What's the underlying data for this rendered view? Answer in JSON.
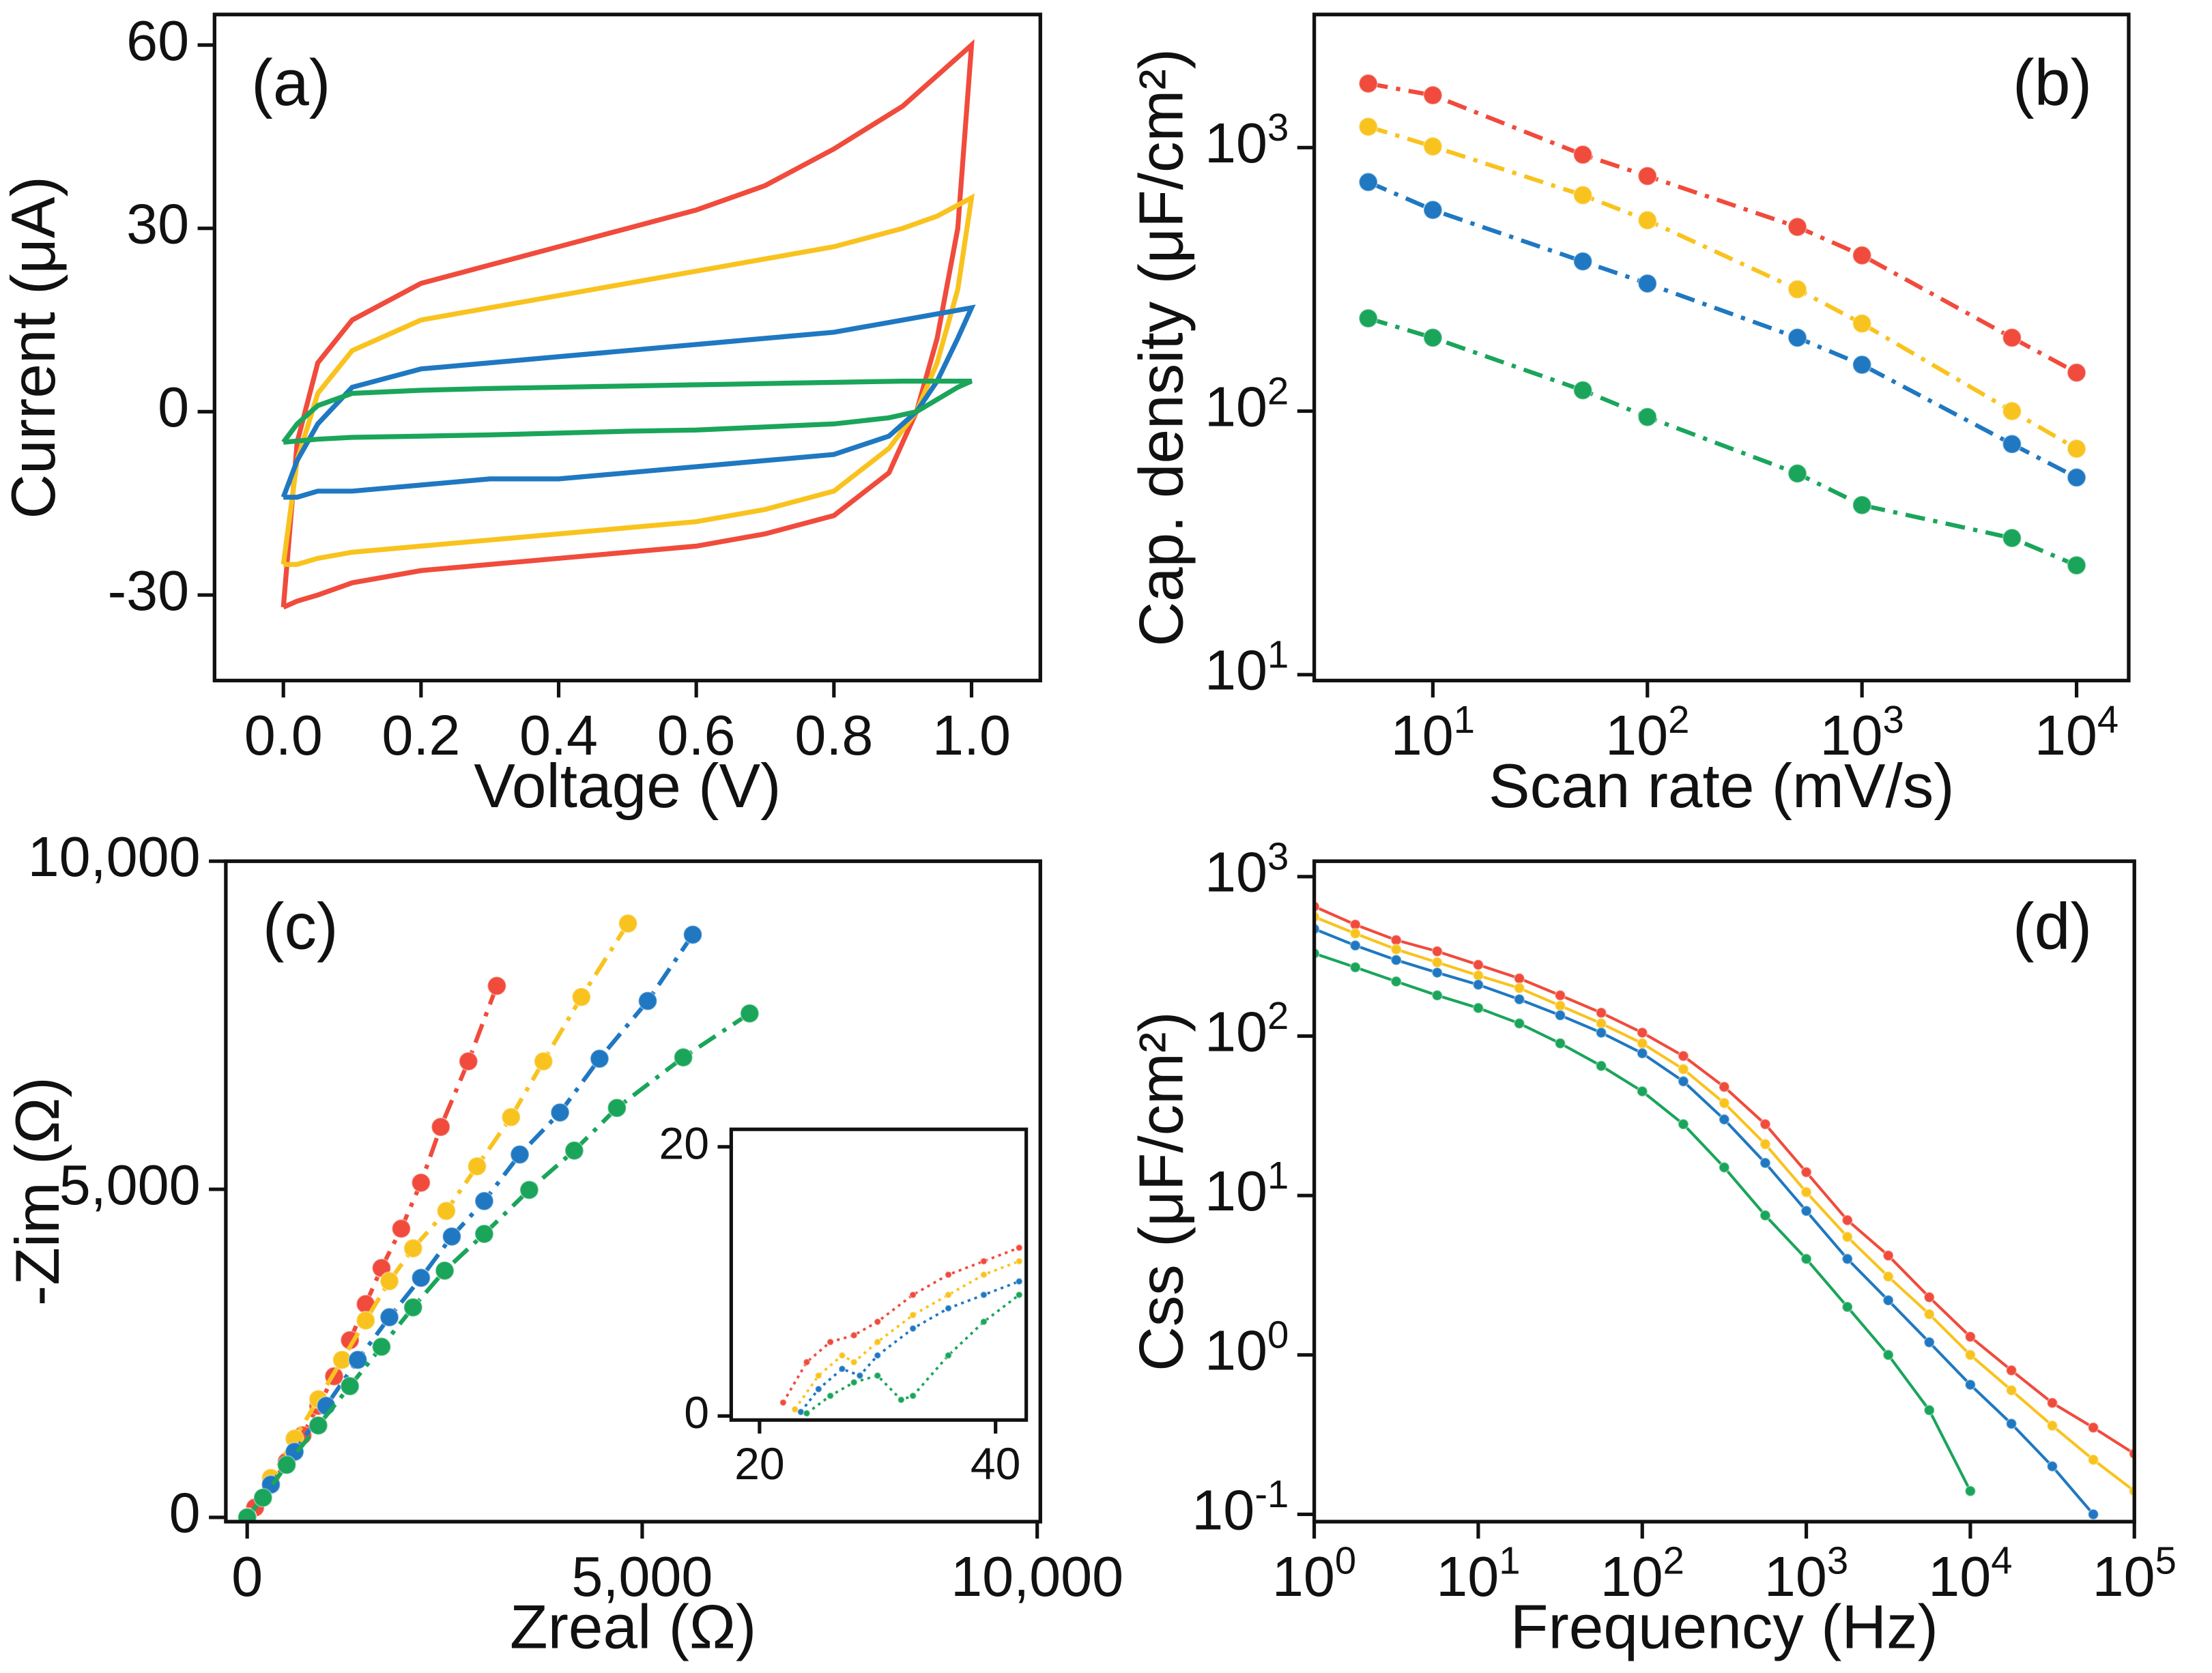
{
  "chart_data": [
    {
      "type": "line",
      "panel_label": "(a)",
      "x_label": "Voltage (V)",
      "y_label": "Current (μA)",
      "x": [
        0,
        0.02,
        0.05,
        0.1,
        0.2,
        0.3,
        0.4,
        0.5,
        0.6,
        0.7,
        0.8,
        0.9,
        0.95,
        1.0,
        1.0,
        0.98,
        0.95,
        0.92,
        0.88,
        0.8,
        0.7,
        0.6,
        0.5,
        0.4,
        0.3,
        0.2,
        0.1,
        0.05,
        0.02,
        0
      ],
      "xlim": [
        -0.1,
        1.1
      ],
      "ylim": [
        -44,
        65
      ],
      "xticks": [
        {
          "value": 0,
          "label": "0.0"
        },
        {
          "value": 0.2,
          "label": "0.2"
        },
        {
          "value": 0.4,
          "label": "0.4"
        },
        {
          "value": 0.6,
          "label": "0.6"
        },
        {
          "value": 0.8,
          "label": "0.8"
        },
        {
          "value": 1,
          "label": "1.0"
        }
      ],
      "yticks": [
        -30,
        0,
        30,
        60
      ],
      "series": [
        {
          "color": "#f04b3c",
          "values": [
            -32,
            -5,
            8,
            15,
            21,
            24,
            27,
            30,
            33,
            37,
            43,
            50,
            55,
            60,
            60,
            30,
            12,
            0,
            -10,
            -17,
            -20,
            -22,
            -23,
            -24,
            -25,
            -26,
            -28,
            -30,
            -31,
            -32
          ]
        },
        {
          "color": "#f9c31f",
          "values": [
            -25,
            -8,
            3,
            10,
            15,
            17,
            19,
            21,
            23,
            25,
            27,
            30,
            32,
            35,
            35,
            20,
            8,
            0,
            -6,
            -13,
            -16,
            -18,
            -19,
            -20,
            -21,
            -22,
            -23,
            -24,
            -25,
            -25
          ]
        },
        {
          "color": "#1f78c1",
          "values": [
            -14,
            -8,
            -2,
            4,
            7,
            8,
            9,
            10,
            11,
            12,
            13,
            15,
            16,
            17,
            17,
            12,
            5,
            0,
            -4,
            -7,
            -8,
            -9,
            -10,
            -11,
            -11,
            -12,
            -13,
            -13,
            -14,
            -14
          ]
        },
        {
          "color": "#1aa55a",
          "values": [
            -5,
            -2,
            1,
            3,
            3.5,
            3.8,
            4,
            4.2,
            4.4,
            4.6,
            4.8,
            5,
            5,
            5,
            5,
            4,
            2,
            0,
            -1,
            -2,
            -2.5,
            -3,
            -3.2,
            -3.5,
            -3.8,
            -4,
            -4.2,
            -4.5,
            -4.8,
            -5
          ]
        }
      ]
    },
    {
      "type": "scatter",
      "panel_label": "(b)",
      "x_label": "Scan rate (mV/s)",
      "y_label": "Cap. density (μF/cm²)",
      "xscale": "log",
      "yscale": "log",
      "line_style": "dash-dot",
      "x": [
        5,
        10,
        50,
        100,
        500,
        1000,
        5000,
        10000
      ],
      "xlim": [
        2.8,
        17500
      ],
      "ylim": [
        9.5,
        3200
      ],
      "xticks": [
        {
          "value": 10,
          "label": "10^1"
        },
        {
          "value": 100,
          "label": "10^2"
        },
        {
          "value": 1000,
          "label": "10^3"
        },
        {
          "value": 10000,
          "label": "10^4"
        }
      ],
      "yticks": [
        {
          "value": 10,
          "label": "10^1"
        },
        {
          "value": 100,
          "label": "10^2"
        },
        {
          "value": 1000,
          "label": "10^3"
        }
      ],
      "series": [
        {
          "color": "#f04b3c",
          "values": [
            1750,
            1580,
            940,
            780,
            500,
            390,
            190,
            140
          ]
        },
        {
          "color": "#f9c31f",
          "values": [
            1200,
            1010,
            660,
            530,
            290,
            215,
            100,
            72
          ]
        },
        {
          "color": "#1f78c1",
          "values": [
            740,
            580,
            370,
            305,
            190,
            150,
            75,
            56
          ]
        },
        {
          "color": "#1aa55a",
          "values": [
            225,
            190,
            120,
            95,
            58,
            44,
            33,
            26
          ]
        }
      ]
    },
    {
      "type": "scatter",
      "panel_label": "(c)",
      "x_label": "Zreal (Ω)",
      "y_label": "-Zim (Ω)",
      "line_style": "dash-dot",
      "xlim": [
        -270,
        10040
      ],
      "ylim": [
        -65,
        10000
      ],
      "xticks": [
        0,
        {
          "value": 5000,
          "label": "5,000"
        },
        {
          "value": 10000,
          "label": "10,000"
        }
      ],
      "yticks": [
        0,
        {
          "value": 5000,
          "label": "5,000"
        },
        {
          "value": 10000,
          "label": "10,000"
        }
      ],
      "series": [
        {
          "color": "#f04b3c",
          "x": [
            3160,
            2800,
            2450,
            2200,
            1950,
            1700,
            1500,
            1300,
            1100,
            900,
            700,
            500,
            300,
            100,
            0
          ],
          "values": [
            8100,
            6950,
            5950,
            5100,
            4400,
            3800,
            3250,
            2700,
            2150,
            1700,
            1250,
            850,
            500,
            150,
            0
          ]
        },
        {
          "color": "#f9c31f",
          "x": [
            4820,
            4230,
            3750,
            3340,
            2910,
            2520,
            2100,
            1800,
            1500,
            1200,
            900,
            600,
            300,
            0
          ],
          "values": [
            9050,
            7930,
            6950,
            6100,
            5350,
            4670,
            4100,
            3600,
            3000,
            2400,
            1800,
            1200,
            600,
            0
          ]
        },
        {
          "color": "#1f78c1",
          "x": [
            5640,
            5070,
            4460,
            3960,
            3450,
            3000,
            2590,
            2200,
            1800,
            1400,
            1000,
            600,
            300,
            0
          ],
          "values": [
            8880,
            7870,
            6990,
            6170,
            5530,
            4820,
            4280,
            3650,
            3050,
            2400,
            1700,
            1000,
            500,
            0
          ]
        },
        {
          "color": "#1aa55a",
          "x": [
            6360,
            5520,
            4680,
            4140,
            3570,
            3000,
            2500,
            2100,
            1700,
            1300,
            900,
            500,
            200,
            0
          ],
          "values": [
            7680,
            7010,
            6240,
            5590,
            4990,
            4320,
            3760,
            3200,
            2600,
            2000,
            1400,
            800,
            300,
            0
          ]
        }
      ],
      "inset": {
        "xlim": [
          17.6,
          42.6
        ],
        "ylim": [
          -0.3,
          21.3
        ],
        "xticks": [
          20,
          40
        ],
        "yticks": [
          0,
          20
        ],
        "line_style": "dotted",
        "series": [
          {
            "color": "#f04b3c",
            "x": [
              22,
              24,
              26,
              28,
              30,
              33,
              36,
              39,
              42
            ],
            "values": [
              1,
              4,
              5.5,
              6,
              7,
              9,
              10.5,
              11.5,
              12.5
            ]
          },
          {
            "color": "#f9c31f",
            "x": [
              23,
              25,
              27,
              28,
              30,
              33,
              36,
              39,
              42
            ],
            "values": [
              0.5,
              3,
              4.5,
              4,
              5.5,
              7.5,
              9,
              10.5,
              11.5
            ]
          },
          {
            "color": "#1f78c1",
            "x": [
              23.5,
              25,
              27,
              28.5,
              30,
              33,
              36,
              39,
              42
            ],
            "values": [
              0.3,
              2,
              3.5,
              3,
              4.5,
              6.5,
              8,
              9,
              10
            ]
          },
          {
            "color": "#1aa55a",
            "x": [
              24,
              26,
              28,
              30,
              32,
              33,
              36,
              39,
              42
            ],
            "values": [
              0.2,
              1.5,
              2.5,
              3,
              1.2,
              1.5,
              4.5,
              7,
              9
            ]
          }
        ]
      }
    },
    {
      "type": "line",
      "panel_label": "(d)",
      "x_label": "Frequency (Hz)",
      "y_label": "Css (μF/cm²)",
      "xscale": "log",
      "yscale": "log",
      "markers": true,
      "x": [
        1,
        1.78,
        3.16,
        5.62,
        10,
        17.8,
        31.6,
        56.2,
        100,
        178,
        316,
        562,
        1000,
        1780,
        3160,
        5620,
        10000,
        17800,
        31600,
        56200,
        100000
      ],
      "xlim": [
        1,
        100000
      ],
      "ylim": [
        0.09,
        1250
      ],
      "xticks": [
        {
          "value": 1,
          "label": "10^0"
        },
        {
          "value": 10,
          "label": "10^1"
        },
        {
          "value": 100,
          "label": "10^2"
        },
        {
          "value": 1000,
          "label": "10^3"
        },
        {
          "value": 10000,
          "label": "10^4"
        },
        {
          "value": 100000,
          "label": "10^5"
        }
      ],
      "yticks": [
        {
          "value": 0.1,
          "label": "10^-1"
        },
        {
          "value": 1,
          "label": "10^0"
        },
        {
          "value": 10,
          "label": "10^1"
        },
        {
          "value": 100,
          "label": "10^2"
        },
        {
          "value": 1000,
          "label": "10^3"
        }
      ],
      "series": [
        {
          "color": "#f04b3c",
          "values": [
            650,
            500,
            400,
            340,
            280,
            230,
            180,
            140,
            105,
            75,
            48,
            28,
            14,
            7,
            4.2,
            2.3,
            1.3,
            0.8,
            0.5,
            0.35,
            0.24
          ]
        },
        {
          "color": "#f9c31f",
          "values": [
            560,
            440,
            350,
            290,
            240,
            200,
            155,
            120,
            90,
            62,
            38,
            21,
            10.5,
            5.5,
            3.1,
            1.8,
            1.0,
            0.6,
            0.36,
            0.22,
            0.14
          ]
        },
        {
          "color": "#1f78c1",
          "values": [
            470,
            370,
            300,
            250,
            210,
            170,
            135,
            105,
            78,
            52,
            30,
            16,
            8,
            4,
            2.2,
            1.2,
            0.65,
            0.37,
            0.2,
            0.1,
            null
          ]
        },
        {
          "color": "#1aa55a",
          "values": [
            330,
            270,
            220,
            180,
            150,
            120,
            90,
            65,
            45,
            28,
            15,
            7.5,
            4,
            2,
            1,
            0.45,
            0.14,
            null,
            null,
            null,
            null
          ]
        }
      ]
    }
  ]
}
